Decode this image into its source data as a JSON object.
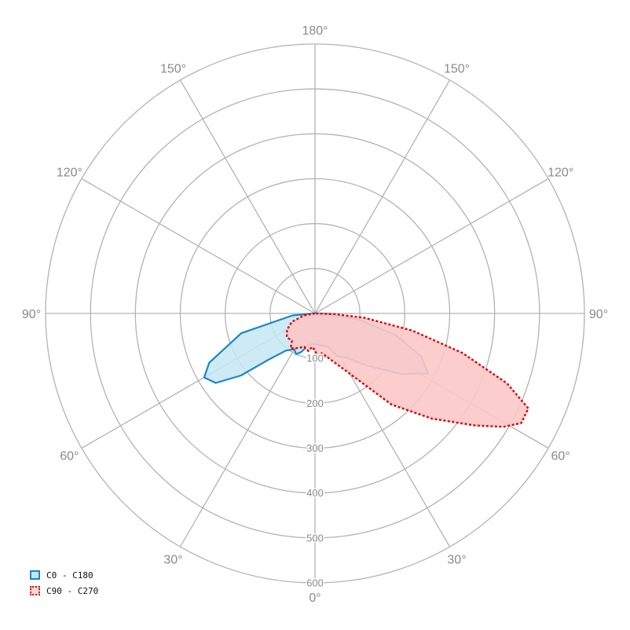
{
  "chart_data": {
    "type": "polar",
    "radial_ticks": [
      100,
      200,
      300,
      400,
      500,
      600
    ],
    "r_max": 600,
    "angle_labels": {
      "left": [
        "0°",
        "30°",
        "60°",
        "90°",
        "120°",
        "150°",
        "180°"
      ],
      "right": [
        "30°",
        "60°",
        "90°",
        "120°",
        "150°"
      ]
    },
    "grid": true,
    "legend_position": "bottom-left",
    "series": [
      {
        "name": "C0 - C180",
        "color": "#1a88c4",
        "fill": "#c6e6f2",
        "style": "solid",
        "points": [
          {
            "angle": -90,
            "r": 0
          },
          {
            "angle": -85,
            "r": 50
          },
          {
            "angle": -75,
            "r": 170
          },
          {
            "angle": -65,
            "r": 260
          },
          {
            "angle": -60,
            "r": 285
          },
          {
            "angle": -55,
            "r": 270
          },
          {
            "angle": -50,
            "r": 215
          },
          {
            "angle": -45,
            "r": 145
          },
          {
            "angle": -38,
            "r": 105
          },
          {
            "angle": -30,
            "r": 92
          },
          {
            "angle": -25,
            "r": 100
          },
          {
            "angle": -20,
            "r": 92
          },
          {
            "angle": -10,
            "r": 70
          },
          {
            "angle": 0,
            "r": 68
          },
          {
            "angle": 10,
            "r": 72
          },
          {
            "angle": 20,
            "r": 78
          },
          {
            "angle": 28,
            "r": 108
          },
          {
            "angle": 35,
            "r": 120
          },
          {
            "angle": 45,
            "r": 165
          },
          {
            "angle": 55,
            "r": 235
          },
          {
            "angle": 62,
            "r": 285
          },
          {
            "angle": 68,
            "r": 255
          },
          {
            "angle": 75,
            "r": 185
          },
          {
            "angle": 82,
            "r": 100
          },
          {
            "angle": 88,
            "r": 30
          },
          {
            "angle": 90,
            "r": 0
          }
        ]
      },
      {
        "name": "C90 - C270",
        "color": "#e00000",
        "fill": "#fcc8c8",
        "style": "dotted",
        "points": [
          {
            "angle": -90,
            "r": 0
          },
          {
            "angle": -80,
            "r": 25
          },
          {
            "angle": -70,
            "r": 55
          },
          {
            "angle": -60,
            "r": 72
          },
          {
            "angle": -50,
            "r": 82
          },
          {
            "angle": -40,
            "r": 80
          },
          {
            "angle": -35,
            "r": 95
          },
          {
            "angle": -25,
            "r": 85
          },
          {
            "angle": -18,
            "r": 78
          },
          {
            "angle": -10,
            "r": 85
          },
          {
            "angle": -5,
            "r": 75
          },
          {
            "angle": 0,
            "r": 82
          },
          {
            "angle": 3,
            "r": 95
          },
          {
            "angle": 10,
            "r": 90
          },
          {
            "angle": 20,
            "r": 112
          },
          {
            "angle": 30,
            "r": 155
          },
          {
            "angle": 40,
            "r": 265
          },
          {
            "angle": 48,
            "r": 350
          },
          {
            "angle": 55,
            "r": 435
          },
          {
            "angle": 59,
            "r": 490
          },
          {
            "angle": 62,
            "r": 520
          },
          {
            "angle": 66,
            "r": 520
          },
          {
            "angle": 70,
            "r": 455
          },
          {
            "angle": 75,
            "r": 340
          },
          {
            "angle": 80,
            "r": 220
          },
          {
            "angle": 85,
            "r": 110
          },
          {
            "angle": 88,
            "r": 45
          },
          {
            "angle": 90,
            "r": 0
          }
        ]
      }
    ]
  },
  "legend": [
    {
      "label": "C0 - C180",
      "style": "solid",
      "color": "#1a88c4",
      "fill": "#c6e6f2"
    },
    {
      "label": "C90 - C270",
      "style": "dotted",
      "color": "#e00000",
      "fill": "#fcd4d4"
    }
  ]
}
